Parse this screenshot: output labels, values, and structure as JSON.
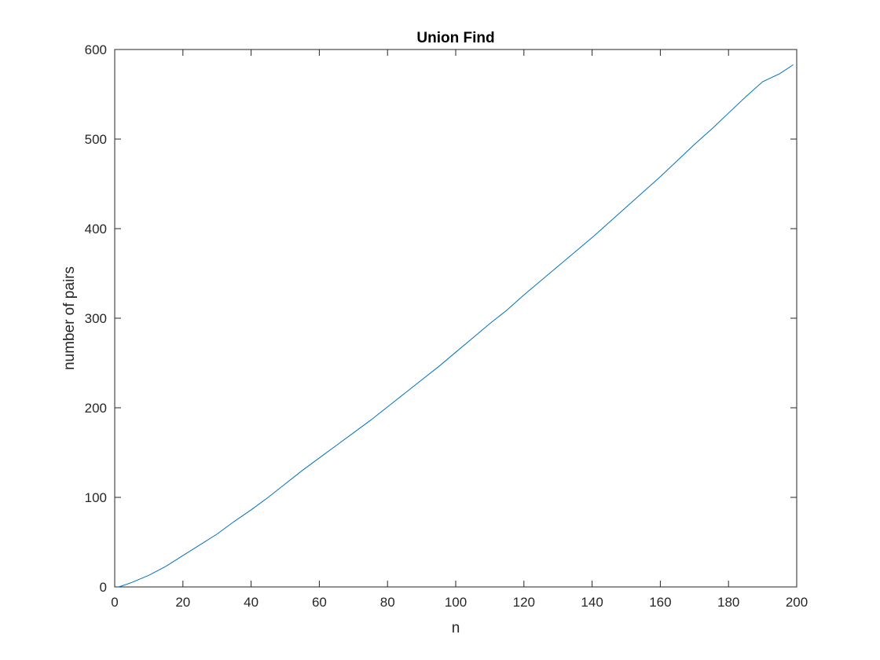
{
  "chart_data": {
    "type": "line",
    "title": "Union Find",
    "xlabel": "n",
    "ylabel": "number of pairs",
    "xlim": [
      0,
      200
    ],
    "ylim": [
      0,
      600
    ],
    "xticks": [
      0,
      20,
      40,
      60,
      80,
      100,
      120,
      140,
      160,
      180,
      200
    ],
    "yticks": [
      0,
      100,
      200,
      300,
      400,
      500,
      600
    ],
    "grid": false,
    "legend": "none",
    "series": [
      {
        "color": "#0072BD",
        "x": [
          1,
          2,
          5,
          10,
          15,
          20,
          25,
          30,
          35,
          40,
          45,
          50,
          55,
          60,
          65,
          70,
          75,
          80,
          85,
          90,
          95,
          100,
          105,
          110,
          115,
          120,
          125,
          130,
          135,
          140,
          145,
          150,
          155,
          160,
          165,
          170,
          175,
          180,
          185,
          190,
          195,
          199
        ],
        "y": [
          0,
          1,
          5,
          13,
          23,
          35,
          47,
          59,
          73,
          86,
          100,
          115,
          130,
          144,
          158,
          172,
          186,
          201,
          216,
          231,
          246,
          262,
          278,
          294,
          309,
          326,
          342,
          358,
          374,
          390,
          407,
          424,
          441,
          458,
          476,
          494,
          511,
          529,
          547,
          564,
          573,
          583
        ]
      }
    ]
  }
}
